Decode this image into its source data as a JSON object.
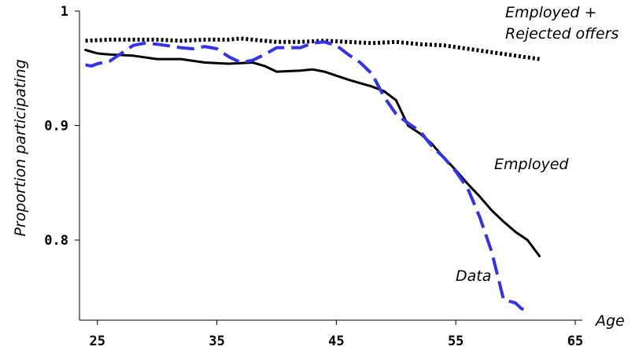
{
  "chart_data": {
    "type": "line",
    "title": "",
    "xlabel": "Age",
    "ylabel": "Proportion participating",
    "xlim": [
      23.5,
      65
    ],
    "ylim": [
      0.73,
      1.0
    ],
    "grid": false,
    "x_ticks": [
      {
        "value": 25,
        "label": "25"
      },
      {
        "value": 35,
        "label": "35"
      },
      {
        "value": 45,
        "label": "45"
      },
      {
        "value": 55,
        "label": "55"
      },
      {
        "value": 65,
        "label": "65"
      }
    ],
    "y_ticks": [
      {
        "value": 0.8,
        "label": "0.8"
      },
      {
        "value": 0.9,
        "label": "0.9"
      },
      {
        "value": 1.0,
        "label": "1"
      }
    ],
    "series": [
      {
        "name": "Employed + Rejected offers",
        "label_lines": [
          "Employed +",
          "Rejected offers"
        ],
        "color": "#000000",
        "style": "dotted",
        "x": [
          24,
          26,
          28,
          30,
          32,
          34,
          36,
          37,
          38,
          40,
          42,
          44,
          46,
          48,
          50,
          52,
          54,
          56,
          58,
          60,
          62
        ],
        "y": [
          0.974,
          0.975,
          0.975,
          0.975,
          0.974,
          0.975,
          0.975,
          0.976,
          0.975,
          0.973,
          0.973,
          0.974,
          0.973,
          0.972,
          0.973,
          0.971,
          0.97,
          0.967,
          0.964,
          0.961,
          0.958
        ]
      },
      {
        "name": "Employed",
        "label_lines": [
          "Employed"
        ],
        "color": "#000000",
        "style": "solid",
        "x": [
          24,
          25,
          26,
          28,
          30,
          32,
          34,
          36,
          38,
          39,
          40,
          42,
          43,
          44,
          46,
          48,
          49,
          50,
          51,
          52,
          53,
          54,
          55,
          56,
          57,
          58,
          59,
          60,
          61,
          62
        ],
        "y": [
          0.966,
          0.963,
          0.962,
          0.961,
          0.958,
          0.958,
          0.955,
          0.954,
          0.955,
          0.952,
          0.947,
          0.948,
          0.949,
          0.947,
          0.94,
          0.934,
          0.93,
          0.922,
          0.9,
          0.893,
          0.884,
          0.872,
          0.861,
          0.849,
          0.838,
          0.826,
          0.816,
          0.807,
          0.8,
          0.786
        ]
      },
      {
        "name": "Data",
        "label_lines": [
          "Data"
        ],
        "color": "#3333ee",
        "style": "dashed",
        "x": [
          24,
          24.5,
          25,
          26,
          27,
          28,
          29,
          30,
          32,
          33,
          34,
          35,
          36,
          37,
          38,
          39,
          40,
          42,
          43,
          44,
          45,
          46,
          47,
          48,
          49,
          50,
          51,
          52,
          53,
          54,
          55,
          56,
          57,
          58,
          59,
          60,
          60.5,
          61
        ],
        "y": [
          0.953,
          0.952,
          0.954,
          0.956,
          0.963,
          0.97,
          0.972,
          0.971,
          0.968,
          0.967,
          0.969,
          0.967,
          0.96,
          0.955,
          0.957,
          0.962,
          0.968,
          0.968,
          0.972,
          0.973,
          0.97,
          0.962,
          0.955,
          0.945,
          0.925,
          0.91,
          0.902,
          0.895,
          0.882,
          0.872,
          0.86,
          0.845,
          0.82,
          0.79,
          0.748,
          0.745,
          0.74,
          0.738
        ]
      }
    ]
  }
}
